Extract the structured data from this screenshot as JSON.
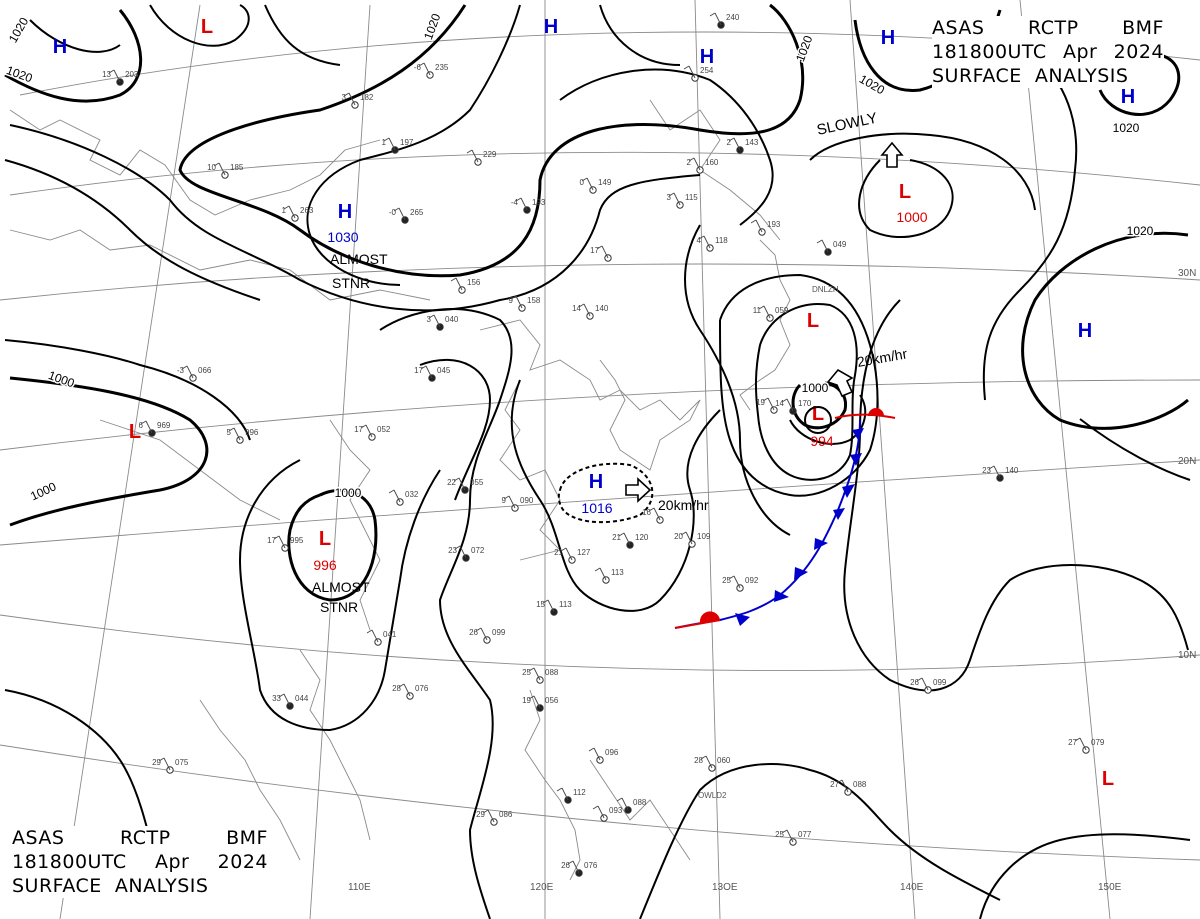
{
  "chart": {
    "product_line": [
      "ASAS",
      "RCTP",
      "BMF"
    ],
    "time_line": [
      "181800UTC",
      "Apr",
      "2024"
    ],
    "name_line": "SURFACE  ANALYSIS"
  },
  "lon_labels": [
    "110E",
    "120E",
    "13OE",
    "140E",
    "150E"
  ],
  "lat_labels": [
    "30N",
    "20N",
    "10N"
  ],
  "isobar_labels": [
    "1020",
    "1020",
    "1020",
    "1020",
    "1020",
    "1020",
    "1020",
    "1000",
    "1000",
    "1000",
    "1000"
  ],
  "pressure_systems": [
    {
      "type": "L",
      "color": "#dd0000",
      "value": ""
    },
    {
      "type": "H",
      "color": "#0000cc",
      "value": ""
    },
    {
      "type": "H",
      "color": "#0000cc",
      "value": "1030"
    },
    {
      "type": "H",
      "color": "#0000cc",
      "value": ""
    },
    {
      "type": "H",
      "color": "#0000cc",
      "value": ""
    },
    {
      "type": "H",
      "color": "#0000cc",
      "value": ""
    },
    {
      "type": "H",
      "color": "#0000cc",
      "value": ""
    },
    {
      "type": "L",
      "color": "#dd0000",
      "value": "1000"
    },
    {
      "type": "L",
      "color": "#dd0000",
      "value": ""
    },
    {
      "type": "L",
      "color": "#dd0000",
      "value": "994"
    },
    {
      "type": "H",
      "color": "#0000cc",
      "value": ""
    },
    {
      "type": "H",
      "color": "#0000cc",
      "value": "1016"
    },
    {
      "type": "L",
      "color": "#dd0000",
      "value": ""
    },
    {
      "type": "L",
      "color": "#dd0000",
      "value": "996"
    },
    {
      "type": "L",
      "color": "#dd0000",
      "value": ""
    }
  ],
  "annotations": [
    "ALMOST",
    "STNR",
    "ALMOST",
    "STNR",
    "SLOWLY",
    "20km/hr",
    "20km/hr",
    "DNLZH",
    "OWLD2"
  ],
  "stations": [
    {
      "t": "13",
      "p": "203"
    },
    {
      "t": "3",
      "p": "182"
    },
    {
      "t": "-6",
      "p": "235"
    },
    {
      "t": "1",
      "p": "197"
    },
    {
      "t": "10",
      "p": "185"
    },
    {
      "t": "1",
      "p": "263"
    },
    {
      "t": "-0",
      "p": "265"
    },
    {
      "t": "",
      "p": "229"
    },
    {
      "t": "0",
      "p": "149"
    },
    {
      "t": "-4",
      "p": "193"
    },
    {
      "t": "3",
      "p": "115"
    },
    {
      "t": "2",
      "p": "160"
    },
    {
      "t": "2",
      "p": "143"
    },
    {
      "t": "4",
      "p": "118"
    },
    {
      "t": "",
      "p": "193"
    },
    {
      "t": "",
      "p": "049"
    },
    {
      "t": "9",
      "p": "158"
    },
    {
      "t": "14",
      "p": "140"
    },
    {
      "t": "3",
      "p": "040"
    },
    {
      "t": "",
      "p": "156"
    },
    {
      "t": "11",
      "p": "059"
    },
    {
      "t": "17",
      "p": "045"
    },
    {
      "t": "-3",
      "p": "066"
    },
    {
      "t": "5",
      "p": "996"
    },
    {
      "t": "6",
      "p": "969"
    },
    {
      "t": "17",
      "p": "052"
    },
    {
      "t": "",
      "p": "032"
    },
    {
      "t": "22",
      "p": "055"
    },
    {
      "t": "9",
      "p": "090"
    },
    {
      "t": "17",
      "p": "995"
    },
    {
      "t": "23",
      "p": "072"
    },
    {
      "t": "21",
      "p": "127"
    },
    {
      "t": "",
      "p": "113"
    },
    {
      "t": "15",
      "p": "113"
    },
    {
      "t": "26",
      "p": "099"
    },
    {
      "t": "",
      "p": "041"
    },
    {
      "t": "33",
      "p": "044"
    },
    {
      "t": "28",
      "p": "076"
    },
    {
      "t": "25",
      "p": "088"
    },
    {
      "t": "19",
      "p": "056"
    },
    {
      "t": "",
      "p": "096"
    },
    {
      "t": "28",
      "p": "060"
    },
    {
      "t": "",
      "p": "112"
    },
    {
      "t": "29",
      "p": "086"
    },
    {
      "t": "",
      "p": "093"
    },
    {
      "t": "",
      "p": "088"
    },
    {
      "t": "27",
      "p": "088"
    },
    {
      "t": "25",
      "p": "077"
    },
    {
      "t": "26",
      "p": "076"
    },
    {
      "t": "29",
      "p": "075"
    },
    {
      "t": "25",
      "p": "092"
    },
    {
      "t": "21",
      "p": "120"
    },
    {
      "t": "20",
      "p": "109"
    },
    {
      "t": "16",
      "p": ""
    },
    {
      "t": "23",
      "p": "140"
    },
    {
      "t": "26",
      "p": "099"
    },
    {
      "t": "27",
      "p": "079"
    },
    {
      "t": "",
      "p": "240"
    },
    {
      "t": "",
      "p": "254"
    },
    {
      "t": "19",
      "p": ""
    },
    {
      "t": "14",
      "p": "170"
    },
    {
      "t": "17",
      "p": ""
    },
    {
      "t": "",
      "p": "138"
    }
  ]
}
